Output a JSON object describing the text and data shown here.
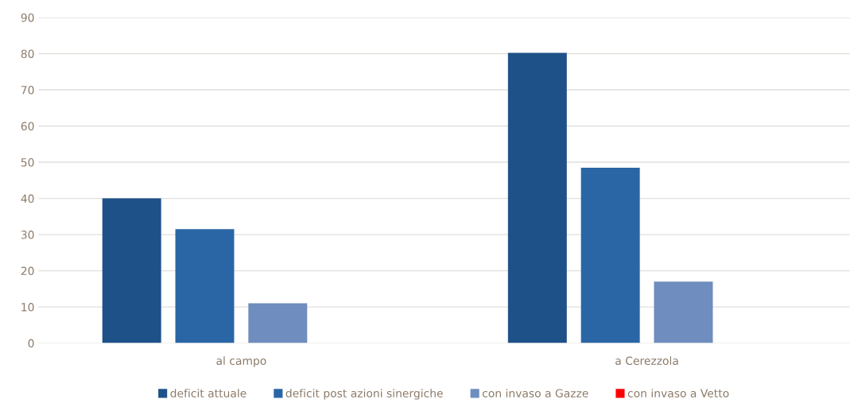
{
  "chart_data": {
    "type": "bar",
    "categories": [
      "al campo",
      "a Cerezzola"
    ],
    "series": [
      {
        "name": "deficit attuale",
        "color": "#1f5189",
        "values": [
          40,
          80.2
        ]
      },
      {
        "name": "deficit post azioni sinergiche",
        "color": "#2a66a6",
        "values": [
          31.5,
          48.5
        ]
      },
      {
        "name": "con invaso a Gazze",
        "color": "#6f8dbe",
        "values": [
          11,
          17
        ]
      },
      {
        "name": "con invaso a Vetto",
        "color": "#ff0000",
        "values": [
          null,
          null
        ]
      }
    ],
    "ylim": [
      0,
      90
    ],
    "yticks": [
      0,
      10,
      20,
      30,
      40,
      50,
      60,
      70,
      80,
      90
    ],
    "grid": "y",
    "legend": "bottom"
  }
}
